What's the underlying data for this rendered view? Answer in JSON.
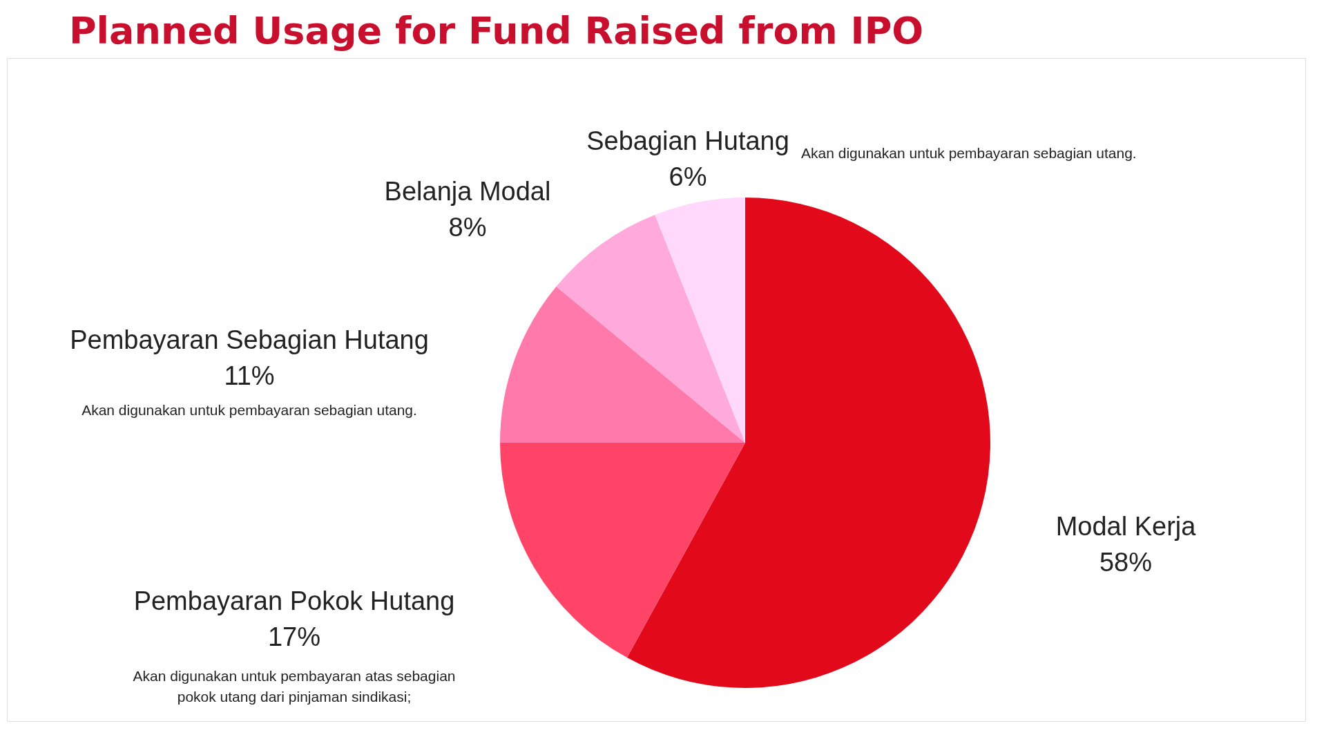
{
  "chart_data": {
    "type": "pie",
    "title": "Planned Usage for Fund Raised from IPO",
    "categories": [
      "Modal Kerja",
      "Pembayaran Pokok Hutang",
      "Pembayaran Sebagian Hutang",
      "Belanja Modal",
      "Sebagian Hutang"
    ],
    "values": [
      58,
      17,
      11,
      8,
      6
    ],
    "value_labels": [
      "58%",
      "17%",
      "11%",
      "8%",
      "6%"
    ],
    "colors": [
      "#e20a1a",
      "#ff4468",
      "#ff7aab",
      "#ffaadb",
      "#ffd8fc"
    ],
    "annotations": [
      "Akan digunakan untuk pembayaran sebagian utang.",
      "Akan digunakan untuk pembayaran sebagian utang.",
      "Akan digunakan untuk pembayaran atas sebagian pokok utang dari pinjaman sindikasi;"
    ],
    "legend": false
  }
}
